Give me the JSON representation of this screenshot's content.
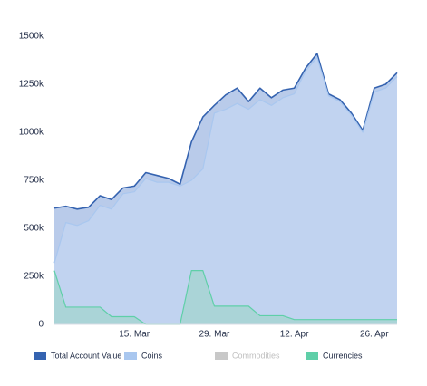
{
  "chart_data": {
    "type": "area",
    "categories": [
      null,
      null,
      null,
      null,
      null,
      null,
      null,
      "15. Mar",
      null,
      null,
      null,
      null,
      null,
      null,
      "29. Mar",
      null,
      null,
      null,
      null,
      null,
      null,
      "12. Apr",
      null,
      null,
      null,
      null,
      null,
      null,
      "26. Apr",
      null,
      null
    ],
    "series": [
      {
        "name": "Total Account Value",
        "color": "#3563b0",
        "fill": "#b9cbea",
        "visible": true,
        "values": [
          605000,
          615000,
          600000,
          610000,
          670000,
          650000,
          710000,
          720000,
          790000,
          775000,
          760000,
          730000,
          950000,
          1080000,
          1140000,
          1195000,
          1230000,
          1160000,
          1230000,
          1180000,
          1220000,
          1230000,
          1335000,
          1410000,
          1200000,
          1170000,
          1100000,
          1010000,
          1230000,
          1250000,
          1310000
        ]
      },
      {
        "name": "Coins",
        "color": "#a9c7ef",
        "fill": "#c4d6f2",
        "visible": true,
        "values": [
          320000,
          530000,
          515000,
          540000,
          620000,
          600000,
          680000,
          690000,
          760000,
          740000,
          740000,
          720000,
          750000,
          810000,
          1100000,
          1120000,
          1150000,
          1120000,
          1170000,
          1140000,
          1180000,
          1200000,
          1320000,
          1390000,
          1190000,
          1160000,
          1090000,
          1000000,
          1210000,
          1230000,
          1290000
        ]
      },
      {
        "name": "Commodities",
        "color": "#c8c8c8",
        "fill": "#c8c8c8",
        "visible": false,
        "values": [
          null,
          null,
          null,
          null,
          null,
          null,
          null,
          null,
          null,
          null,
          null,
          null,
          null,
          null,
          null,
          null,
          null,
          null,
          null,
          null,
          null,
          null,
          null,
          null,
          null,
          null,
          null,
          null,
          null,
          null,
          null
        ]
      },
      {
        "name": "Currencies",
        "color": "#5fcfa8",
        "fill": "#a2d4cf",
        "visible": true,
        "values": [
          280000,
          90000,
          90000,
          90000,
          90000,
          40000,
          40000,
          40000,
          0,
          0,
          0,
          0,
          280000,
          280000,
          95000,
          95000,
          95000,
          95000,
          45000,
          45000,
          45000,
          25000,
          25000,
          25000,
          25000,
          25000,
          25000,
          25000,
          25000,
          25000,
          25000
        ]
      }
    ],
    "ylim": [
      0,
      1500000
    ],
    "yticks": [
      {
        "value": 0,
        "label": "0"
      },
      {
        "value": 250000,
        "label": "250k"
      },
      {
        "value": 500000,
        "label": "500k"
      },
      {
        "value": 750000,
        "label": "750k"
      },
      {
        "value": 1000000,
        "label": "1000k"
      },
      {
        "value": 1250000,
        "label": "1250k"
      },
      {
        "value": 1500000,
        "label": "1500k"
      }
    ]
  }
}
